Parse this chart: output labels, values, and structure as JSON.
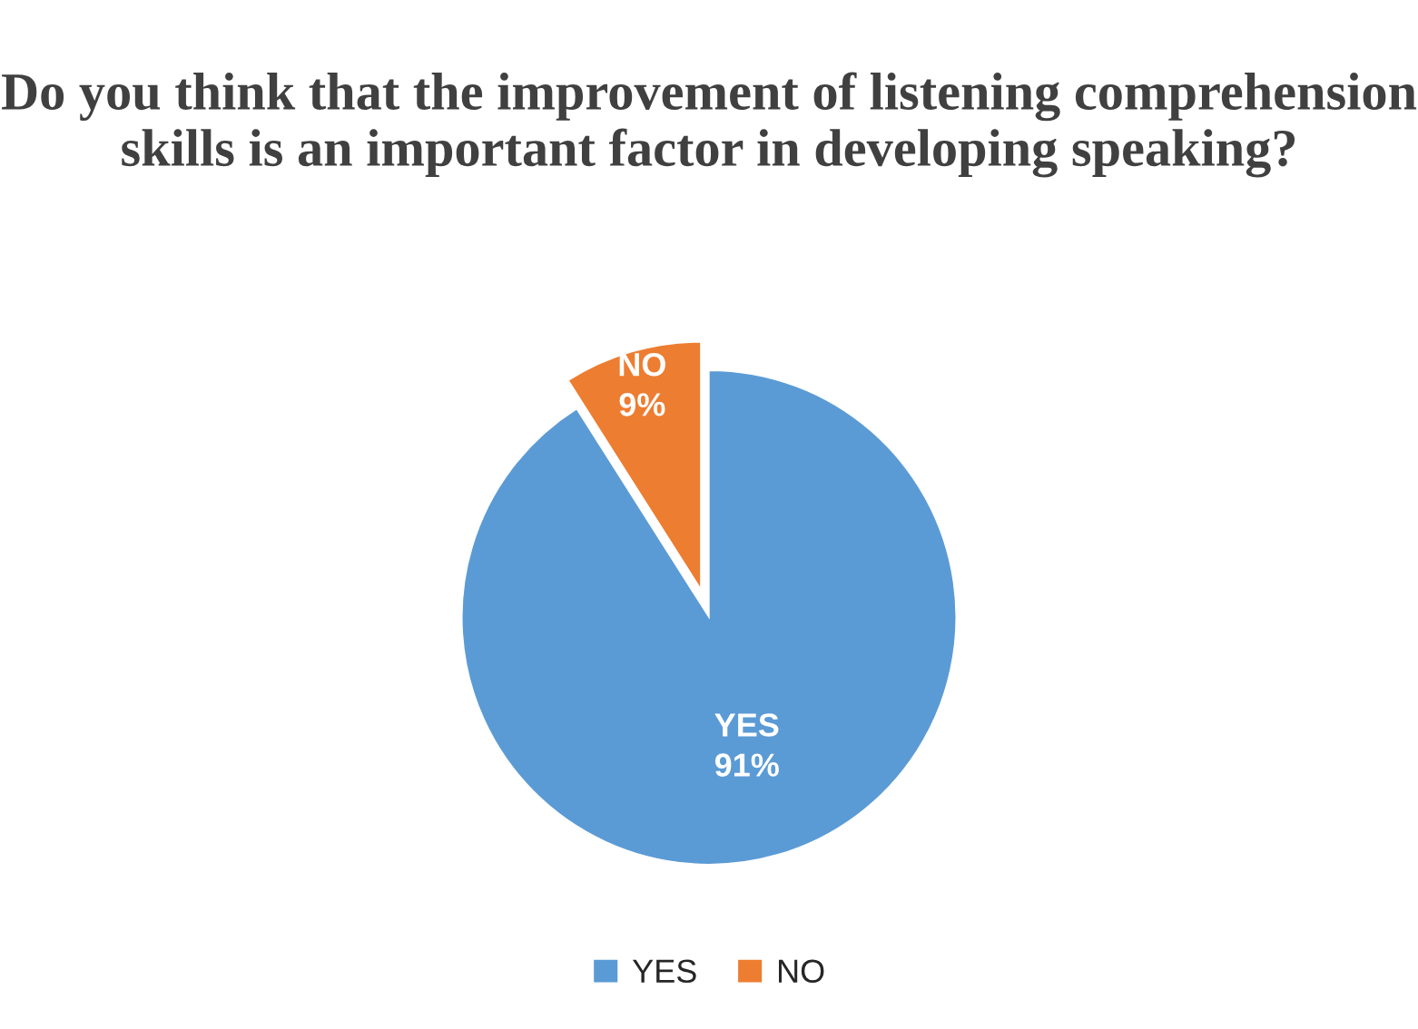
{
  "chart_data": {
    "type": "pie",
    "title": "Do you think that the improvement of listening comprehension skills is an important factor in developing speaking?",
    "categories": [
      "YES",
      "NO"
    ],
    "values": [
      91,
      9
    ],
    "value_labels": [
      "91%",
      "9%"
    ],
    "colors": [
      "#5b9bd5",
      "#ed7d31"
    ],
    "legend": "bottom"
  }
}
